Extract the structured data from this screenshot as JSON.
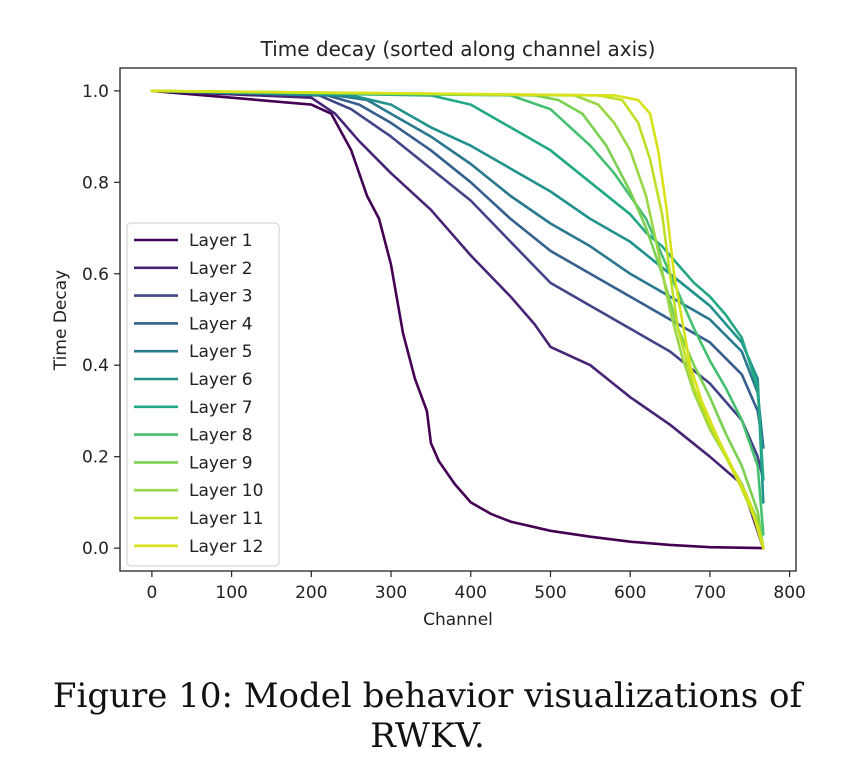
{
  "caption": "Figure 10: Model behavior visualizations of RWKV.",
  "chart_data": {
    "type": "line",
    "title": "Time decay (sorted along channel axis)",
    "xlabel": "Channel",
    "ylabel": "Time Decay",
    "xlim": [
      -40,
      808
    ],
    "ylim": [
      -0.05,
      1.05
    ],
    "xticks": [
      0,
      100,
      200,
      300,
      400,
      500,
      600,
      700,
      800
    ],
    "yticks": [
      0.0,
      0.2,
      0.4,
      0.6,
      0.8,
      1.0
    ],
    "ytick_labels": [
      "0.0",
      "0.2",
      "0.4",
      "0.6",
      "0.8",
      "1.0"
    ],
    "legend_position": "lower-left",
    "series": [
      {
        "name": "Layer 1",
        "color": "#440154",
        "x": [
          0,
          100,
          200,
          225,
          250,
          270,
          285,
          300,
          315,
          330,
          345,
          350,
          360,
          380,
          400,
          425,
          450,
          500,
          550,
          600,
          650,
          700,
          767
        ],
        "y": [
          1.0,
          0.985,
          0.97,
          0.95,
          0.87,
          0.77,
          0.72,
          0.62,
          0.47,
          0.37,
          0.3,
          0.23,
          0.19,
          0.14,
          0.1,
          0.075,
          0.058,
          0.038,
          0.025,
          0.014,
          0.007,
          0.002,
          0.0
        ]
      },
      {
        "name": "Layer 2",
        "color": "#482475",
        "x": [
          0,
          200,
          230,
          260,
          300,
          350,
          400,
          450,
          480,
          500,
          550,
          600,
          650,
          700,
          740,
          767
        ],
        "y": [
          1.0,
          0.985,
          0.95,
          0.89,
          0.82,
          0.74,
          0.64,
          0.55,
          0.49,
          0.44,
          0.4,
          0.33,
          0.27,
          0.2,
          0.14,
          0.0
        ]
      },
      {
        "name": "Layer 3",
        "color": "#414487",
        "x": [
          0,
          210,
          250,
          300,
          350,
          400,
          450,
          500,
          550,
          600,
          650,
          700,
          740,
          760,
          767
        ],
        "y": [
          1.0,
          0.99,
          0.96,
          0.9,
          0.83,
          0.76,
          0.67,
          0.58,
          0.53,
          0.48,
          0.43,
          0.36,
          0.28,
          0.2,
          0.15
        ]
      },
      {
        "name": "Layer 4",
        "color": "#355f8d",
        "x": [
          0,
          220,
          260,
          300,
          350,
          400,
          450,
          500,
          550,
          600,
          650,
          700,
          740,
          760,
          767
        ],
        "y": [
          1.0,
          0.99,
          0.97,
          0.93,
          0.87,
          0.8,
          0.72,
          0.65,
          0.6,
          0.55,
          0.5,
          0.45,
          0.38,
          0.3,
          0.22
        ]
      },
      {
        "name": "Layer 5",
        "color": "#2a788e",
        "x": [
          0,
          230,
          270,
          300,
          350,
          400,
          450,
          500,
          550,
          600,
          650,
          700,
          740,
          760,
          767
        ],
        "y": [
          1.0,
          0.99,
          0.98,
          0.95,
          0.9,
          0.84,
          0.77,
          0.71,
          0.66,
          0.6,
          0.55,
          0.5,
          0.43,
          0.34,
          0.22
        ]
      },
      {
        "name": "Layer 6",
        "color": "#21918c",
        "x": [
          0,
          250,
          300,
          350,
          400,
          450,
          500,
          550,
          600,
          650,
          700,
          740,
          760,
          767
        ],
        "y": [
          1.0,
          0.99,
          0.97,
          0.92,
          0.88,
          0.83,
          0.78,
          0.72,
          0.67,
          0.6,
          0.53,
          0.45,
          0.37,
          0.1
        ]
      },
      {
        "name": "Layer 7",
        "color": "#22a884",
        "x": [
          0,
          350,
          400,
          450,
          500,
          550,
          600,
          620,
          640,
          660,
          680,
          700,
          720,
          740,
          760,
          767
        ],
        "y": [
          1.0,
          0.99,
          0.97,
          0.92,
          0.87,
          0.8,
          0.73,
          0.69,
          0.66,
          0.62,
          0.58,
          0.55,
          0.51,
          0.46,
          0.35,
          0.15
        ]
      },
      {
        "name": "Layer 8",
        "color": "#44bf70",
        "x": [
          0,
          450,
          500,
          550,
          580,
          600,
          620,
          640,
          660,
          680,
          700,
          720,
          740,
          760,
          767
        ],
        "y": [
          1.0,
          0.99,
          0.96,
          0.88,
          0.82,
          0.77,
          0.72,
          0.64,
          0.56,
          0.48,
          0.41,
          0.35,
          0.28,
          0.18,
          0.03
        ]
      },
      {
        "name": "Layer 9",
        "color": "#7ad151",
        "x": [
          0,
          480,
          510,
          540,
          570,
          600,
          620,
          640,
          660,
          680,
          700,
          720,
          740,
          760,
          767
        ],
        "y": [
          1.0,
          0.99,
          0.98,
          0.95,
          0.88,
          0.78,
          0.7,
          0.6,
          0.48,
          0.4,
          0.33,
          0.25,
          0.18,
          0.08,
          0.0
        ]
      },
      {
        "name": "Layer 10",
        "color": "#9ad645",
        "x": [
          0,
          530,
          560,
          580,
          600,
          620,
          635,
          650,
          665,
          680,
          700,
          720,
          740,
          760,
          767
        ],
        "y": [
          1.0,
          0.99,
          0.97,
          0.93,
          0.87,
          0.77,
          0.65,
          0.52,
          0.42,
          0.34,
          0.26,
          0.2,
          0.14,
          0.06,
          0.0
        ]
      },
      {
        "name": "Layer 11",
        "color": "#bddf26",
        "x": [
          0,
          560,
          590,
          610,
          625,
          640,
          650,
          660,
          680,
          700,
          720,
          740,
          760,
          767
        ],
        "y": [
          1.0,
          0.99,
          0.98,
          0.93,
          0.85,
          0.73,
          0.6,
          0.48,
          0.35,
          0.27,
          0.2,
          0.13,
          0.05,
          0.0
        ]
      },
      {
        "name": "Layer 12",
        "color": "#d8e219",
        "x": [
          0,
          580,
          610,
          625,
          635,
          645,
          655,
          665,
          675,
          690,
          710,
          730,
          750,
          767
        ],
        "y": [
          1.0,
          0.99,
          0.98,
          0.95,
          0.87,
          0.75,
          0.6,
          0.5,
          0.4,
          0.32,
          0.24,
          0.17,
          0.1,
          0.0
        ]
      }
    ]
  }
}
